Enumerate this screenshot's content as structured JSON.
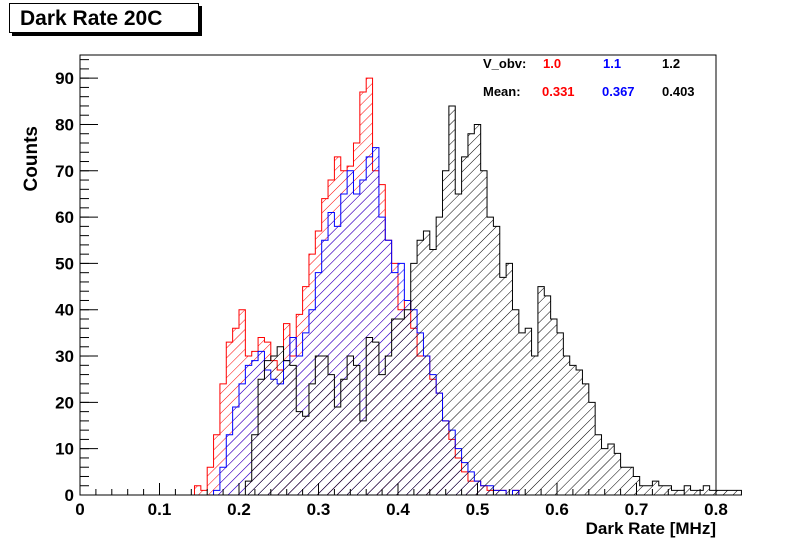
{
  "chart_data": {
    "type": "histogram",
    "title": "Dark Rate 20C",
    "xlabel": "Dark Rate [MHz]",
    "ylabel": "Counts",
    "xlim": [
      0,
      0.8
    ],
    "ylim": [
      0,
      95
    ],
    "xticks": [
      "0",
      "0.1",
      "0.2",
      "0.3",
      "0.4",
      "0.5",
      "0.6",
      "0.7",
      "0.8"
    ],
    "yticks": [
      "0",
      "10",
      "20",
      "30",
      "40",
      "50",
      "60",
      "70",
      "80",
      "90"
    ],
    "bin_start": 0,
    "bin_width": 0.008,
    "grid": false,
    "legend": {
      "row1_label": "V_obv:",
      "row2_label": "Mean:",
      "placement": "top-right"
    },
    "series": [
      {
        "v_label": "1.0",
        "mean_label": "0.331",
        "color": "#ff0000",
        "values": [
          0,
          0,
          0,
          0,
          0,
          0,
          0,
          0,
          0,
          0,
          0,
          0,
          0,
          0,
          0,
          0,
          0,
          0,
          2,
          1,
          6,
          13,
          24,
          33,
          36,
          40,
          30,
          31,
          34,
          33,
          29,
          27,
          37,
          30,
          39,
          45,
          52,
          57,
          64,
          68,
          73,
          70,
          71,
          76,
          87,
          90,
          70,
          67,
          55,
          50,
          40,
          42,
          36,
          30,
          30,
          25,
          22,
          16,
          12,
          8,
          5,
          3,
          3,
          2,
          1,
          1,
          1,
          0,
          1,
          0,
          0,
          0,
          0,
          0,
          0,
          0,
          0,
          0,
          0,
          0,
          0,
          0,
          0,
          0,
          0,
          0,
          0,
          0,
          0,
          0,
          0,
          0,
          0,
          0,
          0,
          0,
          0,
          0,
          0,
          0
        ]
      },
      {
        "v_label": "1.1",
        "mean_label": "0.367",
        "color": "#0000ff",
        "values": [
          0,
          0,
          0,
          0,
          0,
          0,
          0,
          0,
          0,
          0,
          0,
          0,
          0,
          0,
          0,
          0,
          0,
          0,
          0,
          0,
          0,
          1,
          6,
          13,
          19,
          24,
          28,
          29,
          31,
          27,
          25,
          24,
          29,
          34,
          30,
          35,
          40,
          48,
          55,
          61,
          58,
          65,
          70,
          65,
          68,
          73,
          75,
          60,
          55,
          48,
          50,
          42,
          40,
          35,
          30,
          26,
          22,
          16,
          14,
          10,
          7,
          5,
          3,
          2,
          2,
          1,
          1,
          0,
          1,
          0,
          0,
          0,
          0,
          0,
          0,
          0,
          0,
          0,
          0,
          0,
          0,
          0,
          0,
          0,
          0,
          0,
          0,
          0,
          0,
          0,
          0,
          0,
          0,
          0,
          0,
          0,
          0,
          0,
          0,
          0
        ]
      },
      {
        "v_label": "1.2",
        "mean_label": "0.403",
        "color": "#000000",
        "values": [
          0,
          0,
          0,
          0,
          0,
          0,
          0,
          0,
          0,
          0,
          0,
          0,
          0,
          0,
          0,
          0,
          0,
          0,
          0,
          0,
          0,
          0,
          0,
          0,
          0,
          0,
          3,
          13,
          25,
          29,
          30,
          32,
          29,
          28,
          18,
          17,
          24,
          30,
          30,
          26,
          19,
          25,
          30,
          28,
          16,
          34,
          33,
          26,
          30,
          38,
          38,
          40,
          50,
          55,
          57,
          53,
          60,
          70,
          84,
          65,
          73,
          78,
          80,
          70,
          60,
          58,
          47,
          50,
          40,
          35,
          36,
          30,
          45,
          43,
          38,
          35,
          30,
          28,
          27,
          24,
          20,
          13,
          10,
          11,
          9,
          6,
          6,
          4,
          2,
          2,
          3,
          2,
          2,
          1,
          1,
          2,
          1,
          1,
          2,
          1,
          1,
          1,
          1,
          1
        ]
      }
    ]
  }
}
